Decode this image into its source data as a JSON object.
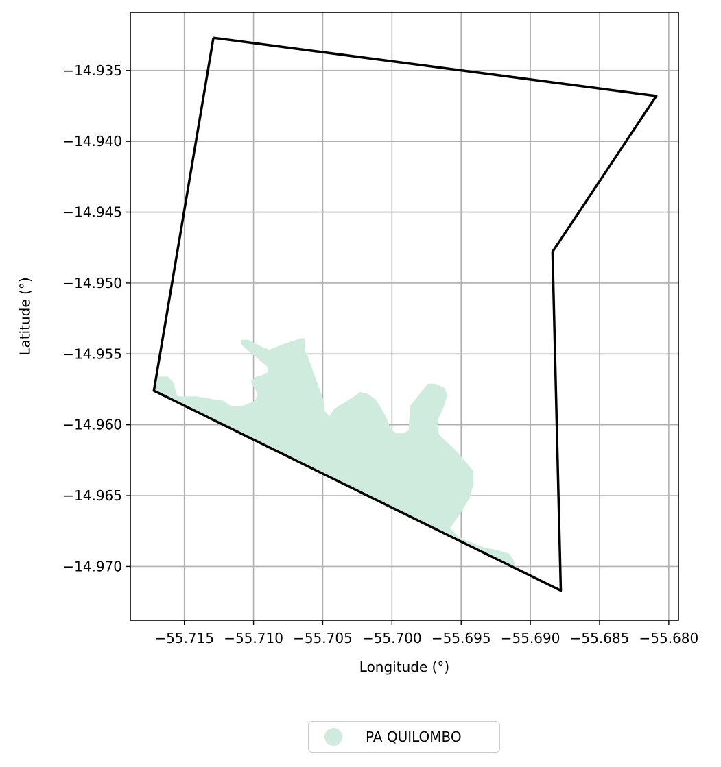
{
  "chart_data": {
    "type": "map",
    "xlabel": "Longitude (°)",
    "ylabel": "Latitude (°)",
    "xlim": [
      -55.7189,
      -55.6793
    ],
    "ylim": [
      -14.9738,
      -14.9309
    ],
    "x_ticks": [
      -55.715,
      -55.71,
      -55.705,
      -55.7,
      -55.695,
      -55.69,
      -55.685,
      -55.68
    ],
    "x_tick_labels": [
      "−55.715",
      "−55.710",
      "−55.705",
      "−55.700",
      "−55.695",
      "−55.690",
      "−55.685",
      "−55.680"
    ],
    "y_ticks": [
      -14.935,
      -14.94,
      -14.945,
      -14.95,
      -14.955,
      -14.96,
      -14.965,
      -14.97
    ],
    "y_tick_labels": [
      "−14.935",
      "−14.940",
      "−14.945",
      "−14.950",
      "−14.955",
      "−14.960",
      "−14.965",
      "−14.970"
    ],
    "grid": true,
    "boundary": {
      "color": "#000000",
      "coordinates": [
        [
          -55.7129,
          -14.9327
        ],
        [
          -55.6809,
          -14.9368
        ],
        [
          -55.6884,
          -14.9478
        ],
        [
          -55.6878,
          -14.9717
        ],
        [
          -55.7172,
          -14.9576
        ],
        [
          -55.7129,
          -14.9327
        ]
      ]
    },
    "area": {
      "name": "PA QUILOMBO",
      "color": "#cfebdd",
      "coordinates": [
        [
          -55.7109,
          -14.954
        ],
        [
          -55.7104,
          -14.954
        ],
        [
          -55.7094,
          -14.9545
        ],
        [
          -55.7089,
          -14.9547
        ],
        [
          -55.7078,
          -14.9543
        ],
        [
          -55.7066,
          -14.9539
        ],
        [
          -55.7063,
          -14.9539
        ],
        [
          -55.7063,
          -14.9546
        ],
        [
          -55.7056,
          -14.9565
        ],
        [
          -55.7049,
          -14.9584
        ],
        [
          -55.7049,
          -14.959
        ],
        [
          -55.7045,
          -14.9594
        ],
        [
          -55.7042,
          -14.9589
        ],
        [
          -55.7032,
          -14.9583
        ],
        [
          -55.7023,
          -14.9577
        ],
        [
          -55.7018,
          -14.9578
        ],
        [
          -55.7012,
          -14.9582
        ],
        [
          -55.7008,
          -14.9588
        ],
        [
          -55.7004,
          -14.9595
        ],
        [
          -55.7001,
          -14.9603
        ],
        [
          -55.6997,
          -14.9606
        ],
        [
          -55.6992,
          -14.9606
        ],
        [
          -55.6988,
          -14.9604
        ],
        [
          -55.6987,
          -14.9587
        ],
        [
          -55.6979,
          -14.9577
        ],
        [
          -55.6974,
          -14.9571
        ],
        [
          -55.6969,
          -14.9571
        ],
        [
          -55.6962,
          -14.9574
        ],
        [
          -55.696,
          -14.9579
        ],
        [
          -55.6962,
          -14.9586
        ],
        [
          -55.6967,
          -14.9597
        ],
        [
          -55.6966,
          -14.9607
        ],
        [
          -55.6954,
          -14.9618
        ],
        [
          -55.6946,
          -14.9627
        ],
        [
          -55.6941,
          -14.9633
        ],
        [
          -55.6941,
          -14.9642
        ],
        [
          -55.6944,
          -14.9652
        ],
        [
          -55.6951,
          -14.9663
        ],
        [
          -55.6958,
          -14.9673
        ],
        [
          -55.6952,
          -14.9679
        ],
        [
          -55.6945,
          -14.9682
        ],
        [
          -55.6938,
          -14.9685
        ],
        [
          -55.6932,
          -14.9687
        ],
        [
          -55.6926,
          -14.9688
        ],
        [
          -55.6915,
          -14.9691
        ],
        [
          -55.6912,
          -14.9696
        ],
        [
          -55.691,
          -14.9701
        ],
        [
          -55.7172,
          -14.9576
        ],
        [
          -55.7172,
          -14.957
        ],
        [
          -55.7169,
          -14.9566
        ],
        [
          -55.7162,
          -14.9566
        ],
        [
          -55.7158,
          -14.957
        ],
        [
          -55.7155,
          -14.958
        ],
        [
          -55.7141,
          -14.958
        ],
        [
          -55.7129,
          -14.9582
        ],
        [
          -55.7122,
          -14.9583
        ],
        [
          -55.7116,
          -14.9587
        ],
        [
          -55.711,
          -14.9587
        ],
        [
          -55.7106,
          -14.9586
        ],
        [
          -55.7099,
          -14.9583
        ],
        [
          -55.7097,
          -14.9578
        ],
        [
          -55.71,
          -14.9573
        ],
        [
          -55.7102,
          -14.9569
        ],
        [
          -55.7098,
          -14.9566
        ],
        [
          -55.7094,
          -14.9565
        ],
        [
          -55.709,
          -14.9563
        ],
        [
          -55.709,
          -14.9559
        ],
        [
          -55.7095,
          -14.9555
        ],
        [
          -55.7101,
          -14.955
        ],
        [
          -55.7106,
          -14.9546
        ],
        [
          -55.7109,
          -14.9543
        ],
        [
          -55.7109,
          -14.954
        ]
      ]
    },
    "legend": {
      "position": "bottom-center",
      "entries": [
        "PA QUILOMBO"
      ]
    }
  }
}
